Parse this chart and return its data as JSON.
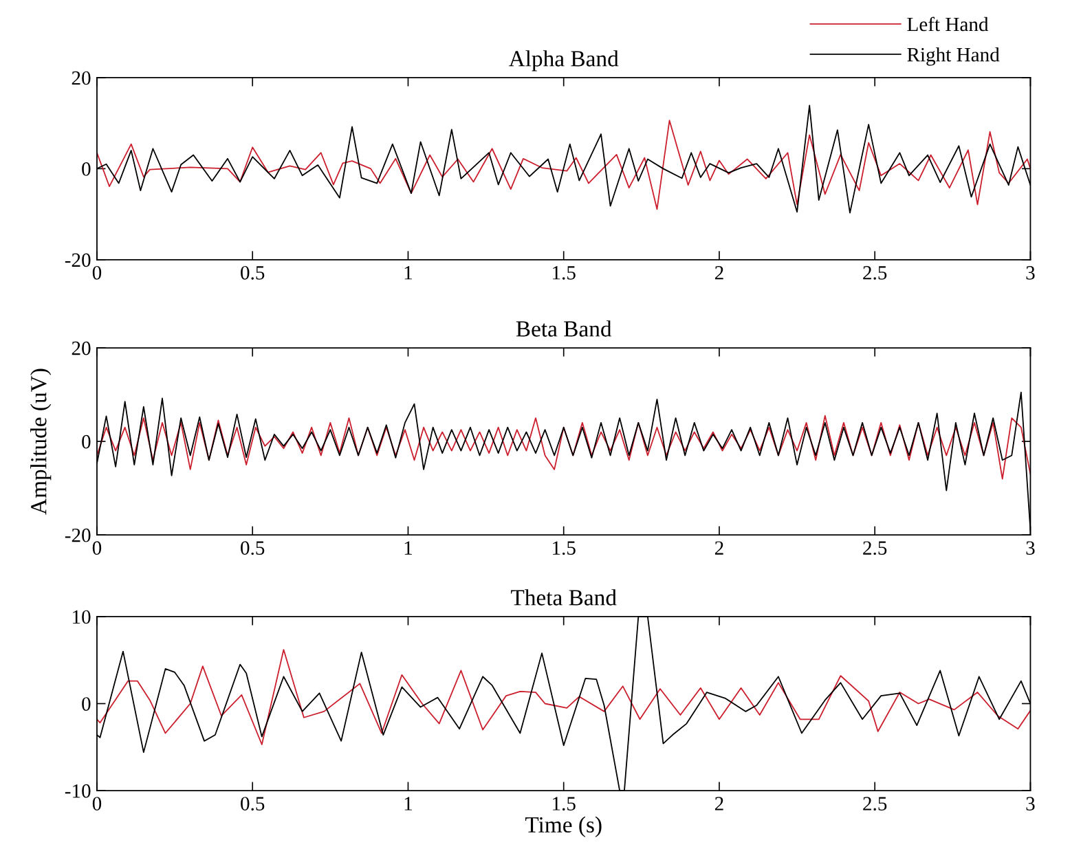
{
  "chart_data": [
    {
      "type": "line",
      "title": "Alpha Band",
      "xlim": [
        0,
        3
      ],
      "xticks": [
        0,
        0.5,
        1,
        1.5,
        2,
        2.5,
        3
      ],
      "ylim": [
        -20,
        20
      ],
      "yticks": [
        -20,
        0,
        20
      ],
      "legend": "top right",
      "grid": false,
      "series": [
        {
          "name": "Left Hand",
          "color": "#cc1f2e",
          "x": [
            0,
            0.04,
            0.11,
            0.15,
            0.17,
            0.3,
            0.42,
            0.46,
            0.5,
            0.55,
            0.62,
            0.67,
            0.72,
            0.76,
            0.79,
            0.82,
            0.88,
            0.91,
            0.96,
            1.01,
            1.07,
            1.11,
            1.16,
            1.21,
            1.27,
            1.33,
            1.37,
            1.43,
            1.51,
            1.54,
            1.58,
            1.67,
            1.71,
            1.76,
            1.8,
            1.84,
            1.9,
            1.94,
            1.97,
            2.0,
            2.03,
            2.09,
            2.15,
            2.22,
            2.25,
            2.29,
            2.34,
            2.39,
            2.45,
            2.48,
            2.52,
            2.58,
            2.64,
            2.68,
            2.74,
            2.8,
            2.83,
            2.87,
            2.9,
            2.93,
            2.99,
            3.0
          ],
          "values": [
            3.5,
            -3.9,
            5.4,
            -1.8,
            -0.2,
            0.3,
            0,
            -2.9,
            4.7,
            -0.8,
            0.6,
            -0.2,
            3.5,
            -3.5,
            1.2,
            1.7,
            0,
            -3.2,
            2.2,
            -5.4,
            3,
            -1.8,
            2.1,
            -2.9,
            4.4,
            -4.5,
            2.2,
            0.2,
            -0.5,
            2.4,
            -3.2,
            3.1,
            -4.2,
            2.4,
            -8.9,
            10.6,
            -3.6,
            3.8,
            -2.6,
            1.8,
            -1.2,
            2.1,
            -2.2,
            3.5,
            -7.9,
            7.4,
            -5.6,
            3.1,
            -4.8,
            5.7,
            -1.5,
            1.1,
            -2.6,
            3,
            -4.2,
            4.1,
            -7.9,
            8.1,
            -0.9,
            -3.2,
            2.1,
            0
          ]
        },
        {
          "name": "Right Hand",
          "color": "#000000",
          "x": [
            0,
            0.03,
            0.07,
            0.11,
            0.14,
            0.18,
            0.24,
            0.27,
            0.31,
            0.37,
            0.42,
            0.46,
            0.5,
            0.57,
            0.62,
            0.66,
            0.71,
            0.78,
            0.82,
            0.85,
            0.9,
            0.95,
            1.01,
            1.04,
            1.1,
            1.14,
            1.17,
            1.26,
            1.29,
            1.33,
            1.39,
            1.45,
            1.48,
            1.52,
            1.55,
            1.62,
            1.65,
            1.71,
            1.74,
            1.77,
            1.82,
            1.88,
            1.91,
            1.94,
            1.97,
            2.03,
            2.07,
            2.12,
            2.16,
            2.19,
            2.25,
            2.29,
            2.32,
            2.38,
            2.42,
            2.48,
            2.52,
            2.58,
            2.61,
            2.67,
            2.71,
            2.77,
            2.81,
            2.87,
            2.93,
            2.96,
            3.0
          ],
          "values": [
            0,
            1,
            -3.2,
            4,
            -4.8,
            4.4,
            -5.1,
            0.9,
            3,
            -2.7,
            2.2,
            -2.9,
            2.6,
            -2.2,
            4,
            -1.5,
            0.8,
            -6.4,
            9.2,
            -2,
            -3.2,
            5.4,
            -5.4,
            5.9,
            -5.9,
            8.6,
            -2.2,
            3.5,
            -3.5,
            3.5,
            -1.7,
            2.1,
            -5.1,
            5.4,
            -2.6,
            7.6,
            -8.2,
            4.4,
            -2.7,
            2.1,
            0,
            -2.1,
            3.5,
            -1.9,
            1.1,
            -0.9,
            0.2,
            1.1,
            -1.9,
            4.4,
            -9.5,
            13.9,
            -6.9,
            8.5,
            -9.7,
            9.7,
            -3.2,
            3.5,
            -1.5,
            3,
            -3,
            5,
            -6.2,
            5.4,
            -3.6,
            4.8,
            -3.6
          ]
        }
      ]
    },
    {
      "type": "line",
      "title": "Beta Band",
      "ylabel": "Amplitude (uV)",
      "xlim": [
        0,
        3
      ],
      "xticks": [
        0,
        0.5,
        1,
        1.5,
        2,
        2.5,
        3
      ],
      "ylim": [
        -20,
        20
      ],
      "yticks": [
        -20,
        0,
        20
      ],
      "grid": false,
      "x": [
        0,
        0.03,
        0.06,
        0.09,
        0.12,
        0.15,
        0.18,
        0.21,
        0.24,
        0.27,
        0.3,
        0.33,
        0.36,
        0.39,
        0.42,
        0.45,
        0.48,
        0.51,
        0.54,
        0.57,
        0.6,
        0.63,
        0.66,
        0.69,
        0.72,
        0.75,
        0.78,
        0.81,
        0.84,
        0.87,
        0.9,
        0.93,
        0.96,
        0.99,
        1.02,
        1.05,
        1.08,
        1.11,
        1.14,
        1.17,
        1.2,
        1.23,
        1.26,
        1.29,
        1.32,
        1.35,
        1.38,
        1.41,
        1.44,
        1.47,
        1.5,
        1.53,
        1.56,
        1.59,
        1.62,
        1.65,
        1.68,
        1.71,
        1.74,
        1.77,
        1.8,
        1.83,
        1.86,
        1.89,
        1.92,
        1.95,
        1.98,
        2.01,
        2.04,
        2.07,
        2.1,
        2.13,
        2.16,
        2.19,
        2.22,
        2.25,
        2.28,
        2.31,
        2.34,
        2.37,
        2.4,
        2.43,
        2.46,
        2.49,
        2.52,
        2.55,
        2.58,
        2.61,
        2.64,
        2.67,
        2.7,
        2.73,
        2.76,
        2.79,
        2.82,
        2.85,
        2.88,
        2.91,
        2.94,
        2.97,
        3.0
      ],
      "series": [
        {
          "color": "#cc1f2e",
          "values": [
            -3,
            3,
            -2,
            3,
            -3,
            5,
            -4,
            4,
            -3,
            4,
            -6,
            4,
            -4,
            4.5,
            -3,
            3,
            -5,
            3,
            -1,
            1,
            -1.5,
            2,
            -2.5,
            3,
            -3,
            4,
            -2.5,
            5,
            -3,
            3,
            -3,
            3,
            -3,
            2.5,
            -4,
            3,
            -2,
            2,
            -2,
            2.5,
            -2,
            2,
            -2.5,
            3,
            -3,
            2.5,
            -2,
            5,
            -3,
            -6,
            3,
            -3,
            4,
            -3,
            2,
            -2,
            2.5,
            -4,
            4,
            -3,
            3,
            -3,
            2,
            -2,
            2,
            -1.5,
            2,
            -2,
            1.5,
            -1.5,
            2.5,
            -2,
            3,
            -3,
            2.5,
            -2,
            4,
            -4,
            5.5,
            -3,
            4,
            -3,
            3,
            -3,
            4,
            -3,
            3.5,
            -4,
            4,
            -3,
            3,
            -3,
            3,
            -3,
            4,
            -3,
            4,
            -8,
            5,
            3,
            -7
          ]
        },
        {
          "color": "#000000",
          "values": [
            -4.7,
            5.4,
            -5.4,
            8.5,
            -5,
            7.4,
            -5,
            9.2,
            -7.3,
            5,
            -3,
            5.2,
            -4,
            3.8,
            -3.4,
            5.8,
            -3.4,
            4.8,
            -4,
            1.5,
            -1,
            1.5,
            -1.5,
            2,
            -2,
            2.5,
            -3,
            3,
            -3,
            3,
            -2.5,
            3.5,
            -3.5,
            4,
            8,
            -6,
            3,
            -2.5,
            2.5,
            -2,
            3,
            -3,
            2.5,
            -2.5,
            3,
            -2,
            2,
            -2.5,
            2.5,
            -3,
            3,
            -3,
            3,
            -3.5,
            4,
            -3,
            5,
            -3,
            4,
            -2,
            9,
            -4,
            5,
            -3,
            4,
            -2,
            1.5,
            -1.5,
            2.5,
            -2,
            3,
            -3,
            4,
            -3,
            5,
            -5,
            3,
            -3,
            4,
            -4,
            3,
            -3,
            4,
            -3,
            3,
            -2.5,
            3,
            -3,
            4,
            -4,
            6,
            -10.5,
            4,
            -5,
            6,
            -3,
            5,
            -4,
            -3,
            10.5,
            -19
          ]
        }
      ]
    },
    {
      "type": "line",
      "title": "Theta Band",
      "xlabel": "Time (s)",
      "xlim": [
        0,
        3
      ],
      "xticks": [
        0,
        0.5,
        1,
        1.5,
        2,
        2.5,
        3
      ],
      "ylim": [
        -10,
        10
      ],
      "yticks": [
        -10,
        0,
        10
      ],
      "grid": false,
      "series": [
        {
          "color": "#cc1f2e",
          "x": [
            0,
            0.01,
            0.1,
            0.13,
            0.17,
            0.22,
            0.3,
            0.34,
            0.4,
            0.465,
            0.53,
            0.6,
            0.665,
            0.73,
            0.845,
            0.915,
            0.98,
            1.045,
            1.1,
            1.17,
            1.24,
            1.315,
            1.36,
            1.41,
            1.44,
            1.51,
            1.55,
            1.63,
            1.69,
            1.745,
            1.81,
            1.875,
            1.94,
            2.0,
            2.07,
            2.13,
            2.19,
            2.26,
            2.32,
            2.39,
            2.48,
            2.51,
            2.58,
            2.64,
            2.675,
            2.755,
            2.83,
            2.895,
            2.96,
            3.0
          ],
          "values": [
            -1.8,
            -2.2,
            2.6,
            2.6,
            0.4,
            -3.4,
            0,
            4.3,
            -1.4,
            1.0,
            -4.7,
            6.2,
            -1.6,
            -0.9,
            2.3,
            -3.4,
            3.3,
            0,
            -2.3,
            3.8,
            -3.0,
            0.9,
            1.4,
            1.3,
            0,
            -0.5,
            0.8,
            -0.9,
            2.0,
            -1.8,
            1.7,
            -1.3,
            1.8,
            -1.8,
            1.8,
            -1.3,
            2.4,
            -1.8,
            -1.8,
            3.2,
            0.3,
            -3.2,
            1.3,
            0,
            0.5,
            -0.7,
            1.3,
            -1.4,
            -2.9,
            -0.8
          ]
        },
        {
          "color": "#000000",
          "x": [
            0,
            0.01,
            0.084,
            0.15,
            0.22,
            0.25,
            0.28,
            0.345,
            0.38,
            0.46,
            0.48,
            0.53,
            0.6,
            0.66,
            0.715,
            0.785,
            0.85,
            0.92,
            0.98,
            1.04,
            1.095,
            1.165,
            1.24,
            1.27,
            1.36,
            1.43,
            1.5,
            1.57,
            1.605,
            1.63,
            1.68,
            1.695,
            1.74,
            1.77,
            1.82,
            1.85,
            1.895,
            1.96,
            2.02,
            2.085,
            2.12,
            2.19,
            2.265,
            2.34,
            2.39,
            2.46,
            2.52,
            2.58,
            2.635,
            2.71,
            2.77,
            2.835,
            2.9,
            2.97,
            3.0
          ],
          "values": [
            -3.6,
            -3.9,
            6.0,
            -5.6,
            4.0,
            3.6,
            2.1,
            -4.3,
            -3.6,
            4.5,
            3.5,
            -3.8,
            3.1,
            -0.9,
            1.2,
            -4.3,
            5.9,
            -3.6,
            1.9,
            -0.4,
            0.7,
            -2.9,
            3.1,
            2.1,
            -3.4,
            5.8,
            -4.8,
            2.9,
            2.8,
            -0.2,
            -10,
            -10,
            10,
            10,
            -4.6,
            -3.6,
            -2.3,
            1.3,
            0.6,
            -0.9,
            -0.2,
            3.1,
            -3.4,
            0.4,
            2.4,
            -1.8,
            0.9,
            1.2,
            -2.5,
            3.8,
            -3.7,
            3.1,
            -1.8,
            2.6,
            0
          ]
        }
      ]
    }
  ]
}
